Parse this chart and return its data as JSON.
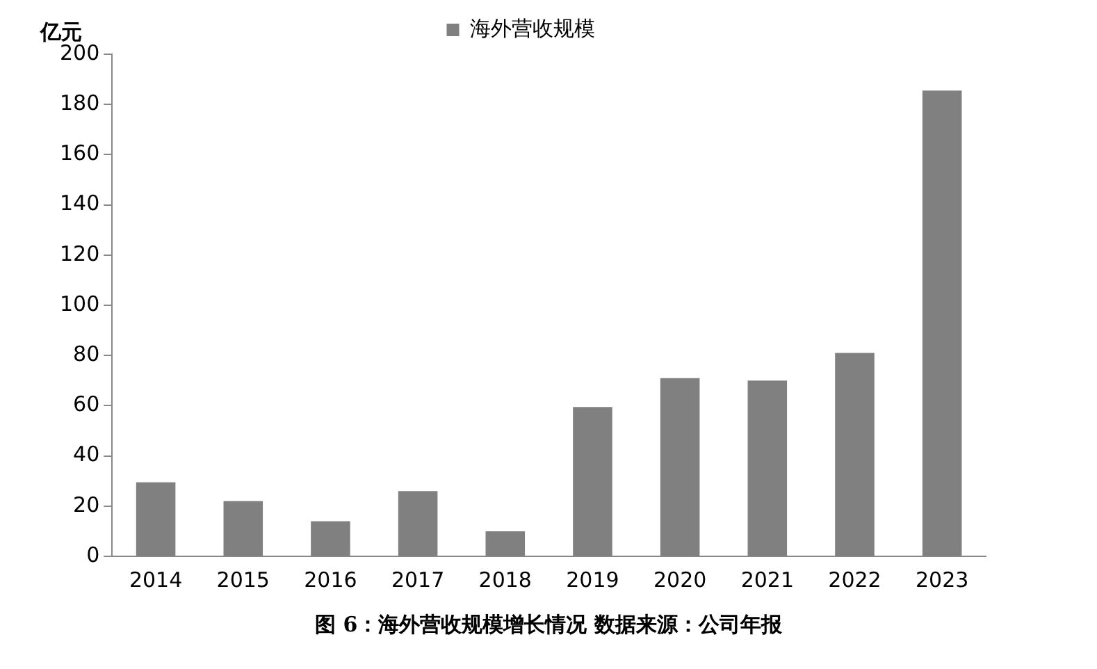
{
  "chart_data": {
    "type": "bar",
    "ylabel": "亿元",
    "categories": [
      "2014",
      "2015",
      "2016",
      "2017",
      "2018",
      "2019",
      "2020",
      "2021",
      "2022",
      "2023"
    ],
    "series": [
      {
        "name": "海外营收规模",
        "color": "#808080",
        "values": [
          29.5,
          22,
          14,
          26,
          10,
          59.5,
          71,
          70,
          81,
          185.5
        ]
      }
    ],
    "ylim": [
      0,
      200
    ],
    "yticks": [
      0,
      20,
      40,
      60,
      80,
      100,
      120,
      140,
      160,
      180,
      200
    ],
    "grid": false,
    "legend": "top",
    "annotations": [
      "图 6：海外营收规模增长情况 数据来源：公司年报"
    ]
  }
}
